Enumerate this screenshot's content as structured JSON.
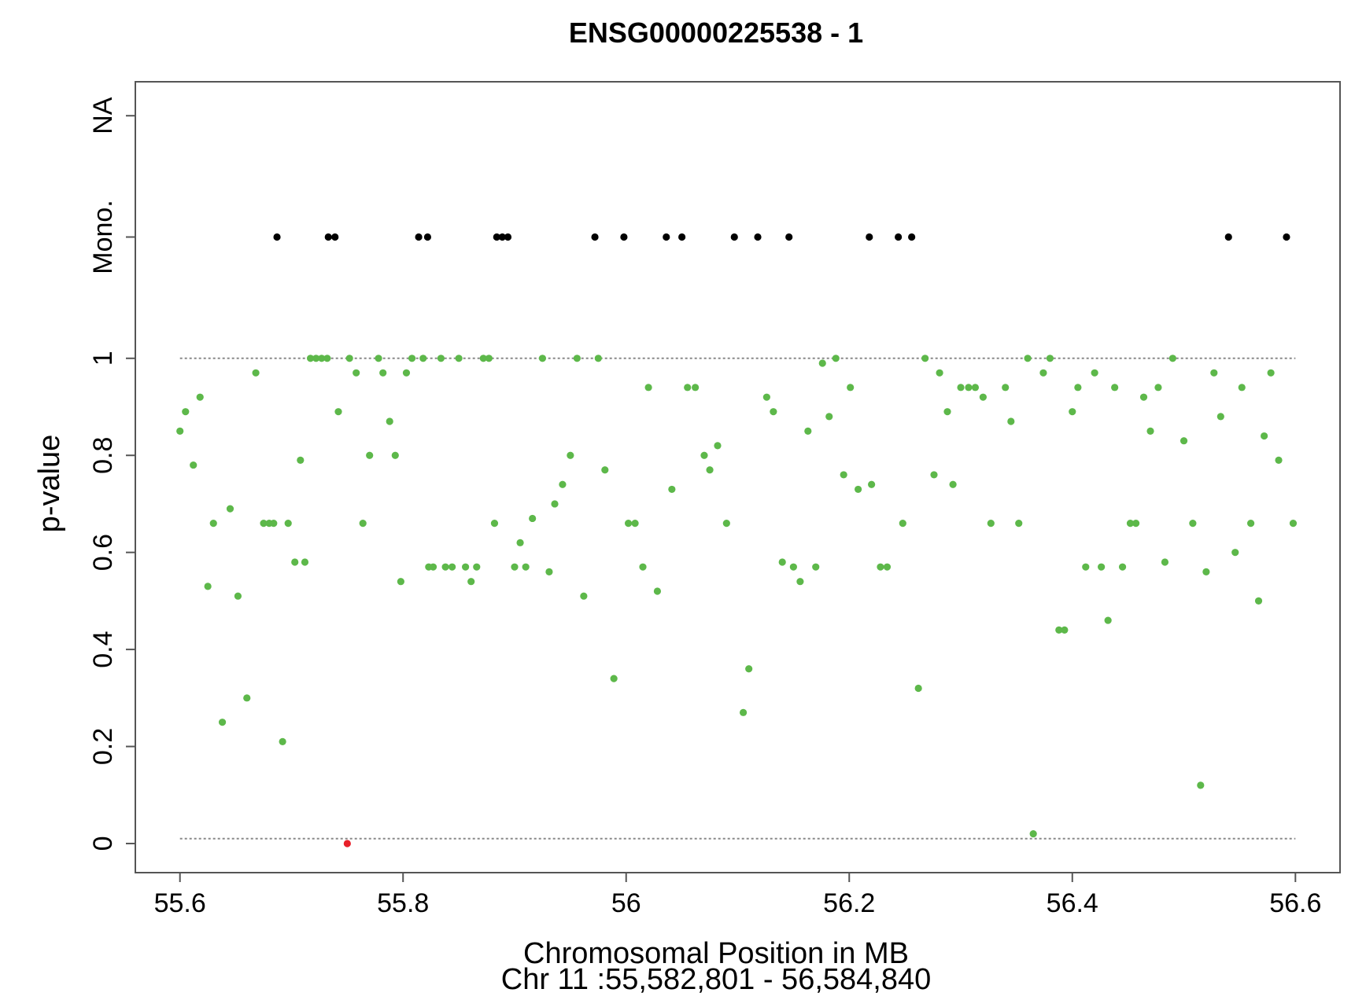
{
  "chart_data": {
    "type": "scatter",
    "title": "ENSG00000225538 - 1",
    "xlabel": "Chromosomal Position in MB",
    "xlabel2": "Chr 11 :55,582,801 - 56,584,840",
    "ylabel": "p-value",
    "xlim": [
      55.56,
      56.64
    ],
    "ylim": [
      -0.06,
      1.57
    ],
    "x_ticks": [
      55.6,
      55.8,
      56.0,
      56.2,
      56.4,
      56.6
    ],
    "x_tick_labels": [
      "55.6",
      "55.8",
      "56",
      "56.2",
      "56.4",
      "56.6"
    ],
    "y_ticks": [
      0,
      0.2,
      0.4,
      0.6,
      0.8,
      1,
      1.25,
      1.5
    ],
    "y_tick_labels": [
      "0",
      "0.2",
      "0.4",
      "0.6",
      "0.8",
      "1",
      "Mono.",
      "NA"
    ],
    "reference_lines": [
      1.0,
      0.01
    ],
    "grid": false,
    "colors": {
      "tested": "#5db84a",
      "mono": "#000000",
      "significant": "#e8202a",
      "frame": "#555555",
      "reference": "#888888"
    },
    "series": [
      {
        "color_key": "tested",
        "points": [
          [
            55.6,
            0.85
          ],
          [
            55.605,
            0.89
          ],
          [
            55.612,
            0.78
          ],
          [
            55.618,
            0.92
          ],
          [
            55.625,
            0.53
          ],
          [
            55.63,
            0.66
          ],
          [
            55.638,
            0.25
          ],
          [
            55.645,
            0.69
          ],
          [
            55.652,
            0.51
          ],
          [
            55.66,
            0.3
          ],
          [
            55.668,
            0.97
          ],
          [
            55.675,
            0.66
          ],
          [
            55.68,
            0.66
          ],
          [
            55.684,
            0.66
          ],
          [
            55.692,
            0.21
          ],
          [
            55.697,
            0.66
          ],
          [
            55.703,
            0.58
          ],
          [
            55.708,
            0.79
          ],
          [
            55.712,
            0.58
          ],
          [
            55.717,
            1.0
          ],
          [
            55.722,
            1.0
          ],
          [
            55.727,
            1.0
          ],
          [
            55.732,
            1.0
          ],
          [
            55.742,
            0.89
          ],
          [
            55.752,
            1.0
          ],
          [
            55.758,
            0.97
          ],
          [
            55.764,
            0.66
          ],
          [
            55.77,
            0.8
          ],
          [
            55.778,
            1.0
          ],
          [
            55.782,
            0.97
          ],
          [
            55.788,
            0.87
          ],
          [
            55.793,
            0.8
          ],
          [
            55.798,
            0.54
          ],
          [
            55.803,
            0.97
          ],
          [
            55.808,
            1.0
          ],
          [
            55.818,
            1.0
          ],
          [
            55.823,
            0.57
          ],
          [
            55.827,
            0.57
          ],
          [
            55.834,
            1.0
          ],
          [
            55.838,
            0.57
          ],
          [
            55.844,
            0.57
          ],
          [
            55.85,
            1.0
          ],
          [
            55.856,
            0.57
          ],
          [
            55.861,
            0.54
          ],
          [
            55.866,
            0.57
          ],
          [
            55.872,
            1.0
          ],
          [
            55.877,
            1.0
          ],
          [
            55.882,
            0.66
          ],
          [
            55.9,
            0.57
          ],
          [
            55.905,
            0.62
          ],
          [
            55.91,
            0.57
          ],
          [
            55.916,
            0.67
          ],
          [
            55.925,
            1.0
          ],
          [
            55.931,
            0.56
          ],
          [
            55.936,
            0.7
          ],
          [
            55.943,
            0.74
          ],
          [
            55.95,
            0.8
          ],
          [
            55.956,
            1.0
          ],
          [
            55.962,
            0.51
          ],
          [
            55.975,
            1.0
          ],
          [
            55.981,
            0.77
          ],
          [
            55.989,
            0.34
          ],
          [
            56.002,
            0.66
          ],
          [
            56.008,
            0.66
          ],
          [
            56.015,
            0.57
          ],
          [
            56.02,
            0.94
          ],
          [
            56.028,
            0.52
          ],
          [
            56.041,
            0.73
          ],
          [
            56.055,
            0.94
          ],
          [
            56.062,
            0.94
          ],
          [
            56.07,
            0.8
          ],
          [
            56.075,
            0.77
          ],
          [
            56.082,
            0.82
          ],
          [
            56.09,
            0.66
          ],
          [
            56.105,
            0.27
          ],
          [
            56.11,
            0.36
          ],
          [
            56.126,
            0.92
          ],
          [
            56.132,
            0.89
          ],
          [
            56.14,
            0.58
          ],
          [
            56.15,
            0.57
          ],
          [
            56.156,
            0.54
          ],
          [
            56.163,
            0.85
          ],
          [
            56.17,
            0.57
          ],
          [
            56.176,
            0.99
          ],
          [
            56.182,
            0.88
          ],
          [
            56.188,
            1.0
          ],
          [
            56.195,
            0.76
          ],
          [
            56.201,
            0.94
          ],
          [
            56.208,
            0.73
          ],
          [
            56.22,
            0.74
          ],
          [
            56.228,
            0.57
          ],
          [
            56.234,
            0.57
          ],
          [
            56.248,
            0.66
          ],
          [
            56.262,
            0.32
          ],
          [
            56.268,
            1.0
          ],
          [
            56.276,
            0.76
          ],
          [
            56.281,
            0.97
          ],
          [
            56.288,
            0.89
          ],
          [
            56.293,
            0.74
          ],
          [
            56.3,
            0.94
          ],
          [
            56.307,
            0.94
          ],
          [
            56.313,
            0.94
          ],
          [
            56.32,
            0.92
          ],
          [
            56.327,
            0.66
          ],
          [
            56.34,
            0.94
          ],
          [
            56.345,
            0.87
          ],
          [
            56.352,
            0.66
          ],
          [
            56.36,
            1.0
          ],
          [
            56.365,
            0.02
          ],
          [
            56.374,
            0.97
          ],
          [
            56.38,
            1.0
          ],
          [
            56.388,
            0.44
          ],
          [
            56.393,
            0.44
          ],
          [
            56.4,
            0.89
          ],
          [
            56.405,
            0.94
          ],
          [
            56.412,
            0.57
          ],
          [
            56.42,
            0.97
          ],
          [
            56.426,
            0.57
          ],
          [
            56.432,
            0.46
          ],
          [
            56.438,
            0.94
          ],
          [
            56.445,
            0.57
          ],
          [
            56.452,
            0.66
          ],
          [
            56.457,
            0.66
          ],
          [
            56.464,
            0.92
          ],
          [
            56.47,
            0.85
          ],
          [
            56.477,
            0.94
          ],
          [
            56.483,
            0.58
          ],
          [
            56.49,
            1.0
          ],
          [
            56.5,
            0.83
          ],
          [
            56.508,
            0.66
          ],
          [
            56.515,
            0.12
          ],
          [
            56.52,
            0.56
          ],
          [
            56.527,
            0.97
          ],
          [
            56.533,
            0.88
          ],
          [
            56.546,
            0.6
          ],
          [
            56.552,
            0.94
          ],
          [
            56.56,
            0.66
          ],
          [
            56.567,
            0.5
          ],
          [
            56.572,
            0.84
          ],
          [
            56.578,
            0.97
          ],
          [
            56.585,
            0.79
          ],
          [
            56.598,
            0.66
          ]
        ]
      },
      {
        "color_key": "mono",
        "points": [
          [
            55.687,
            1.25
          ],
          [
            55.733,
            1.25
          ],
          [
            55.739,
            1.25
          ],
          [
            55.814,
            1.25
          ],
          [
            55.822,
            1.25
          ],
          [
            55.884,
            1.25
          ],
          [
            55.889,
            1.25
          ],
          [
            55.894,
            1.25
          ],
          [
            55.972,
            1.25
          ],
          [
            55.998,
            1.25
          ],
          [
            56.036,
            1.25
          ],
          [
            56.05,
            1.25
          ],
          [
            56.097,
            1.25
          ],
          [
            56.118,
            1.25
          ],
          [
            56.146,
            1.25
          ],
          [
            56.218,
            1.25
          ],
          [
            56.244,
            1.25
          ],
          [
            56.256,
            1.25
          ],
          [
            56.54,
            1.25
          ],
          [
            56.592,
            1.25
          ]
        ]
      },
      {
        "color_key": "significant",
        "points": [
          [
            55.75,
            0.0
          ]
        ]
      }
    ]
  }
}
